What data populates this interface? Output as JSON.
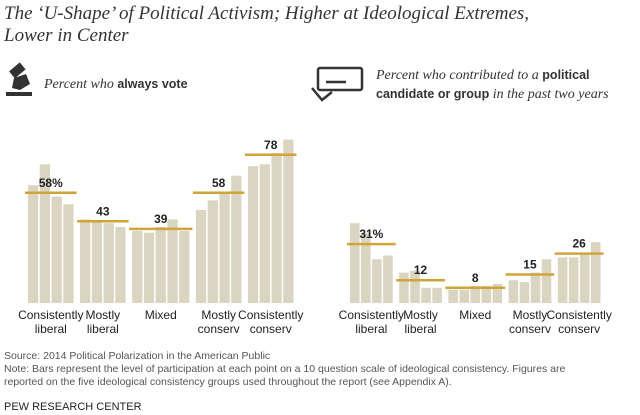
{
  "title_lines": [
    "The ‘U-Shape’ of Political Activism; Higher at Ideological Extremes,",
    "Lower in Center"
  ],
  "chart_data": [
    {
      "type": "bar",
      "ylim": [
        0,
        90
      ],
      "color": "#d9d5c0",
      "average_color": "#d1a43a",
      "legend_lines": [
        [
          {
            "text": "Percent who ",
            "bold": false
          },
          {
            "text": "always vote",
            "bold": true
          }
        ]
      ],
      "groups": [
        {
          "label": [
            "Consistently",
            "liberal"
          ],
          "values": [
            62,
            73,
            56,
            52
          ],
          "average": 58,
          "average_label": "58%"
        },
        {
          "label": [
            "Mostly",
            "liberal"
          ],
          "values": [
            44,
            43,
            42,
            40
          ],
          "average": 43,
          "average_label": "43"
        },
        {
          "label": [
            "Mixed"
          ],
          "values": [
            38,
            37,
            40,
            44,
            38
          ],
          "average": 39,
          "average_label": "39"
        },
        {
          "label": [
            "Mostly",
            "conserv"
          ],
          "values": [
            49,
            54,
            58,
            67
          ],
          "average": 58,
          "average_label": "58"
        },
        {
          "label": [
            "Consistently",
            "conserv"
          ],
          "values": [
            72,
            73,
            79,
            86
          ],
          "average": 78,
          "average_label": "78"
        }
      ]
    },
    {
      "type": "bar",
      "ylim": [
        0,
        90
      ],
      "color": "#d9d5c0",
      "average_color": "#d1a43a",
      "legend_lines": [
        [
          {
            "text": "Percent who contributed to a ",
            "bold": false
          },
          {
            "text": "political",
            "bold": true
          }
        ],
        [
          {
            "text": "candidate or group",
            "bold": true
          },
          {
            "text": " in the past two years",
            "bold": false
          }
        ]
      ],
      "groups": [
        {
          "label": [
            "Consistently",
            "liberal"
          ],
          "values": [
            42,
            37,
            23,
            25
          ],
          "average": 31,
          "average_label": "31%"
        },
        {
          "label": [
            "Mostly",
            "liberal"
          ],
          "values": [
            16,
            17,
            8,
            8
          ],
          "average": 12,
          "average_label": "12"
        },
        {
          "label": [
            "Mixed"
          ],
          "values": [
            7,
            7,
            9,
            9,
            10
          ],
          "average": 8,
          "average_label": "8"
        },
        {
          "label": [
            "Mostly",
            "conserv"
          ],
          "values": [
            12,
            11,
            16,
            23
          ],
          "average": 15,
          "average_label": "15"
        },
        {
          "label": [
            "Consistently",
            "conserv"
          ],
          "values": [
            24,
            24,
            26,
            32
          ],
          "average": 26,
          "average_label": "26"
        }
      ]
    }
  ],
  "source": "Source: 2014 Political Polarization in the American Public",
  "note_lines": [
    "Note: Bars represent the level of participation at each point on a 10 question scale of ideological consistency. Figures are",
    "reported on the five ideological consistency groups used throughout the report (see Appendix A)."
  ],
  "footer": "PEW RESEARCH CENTER"
}
